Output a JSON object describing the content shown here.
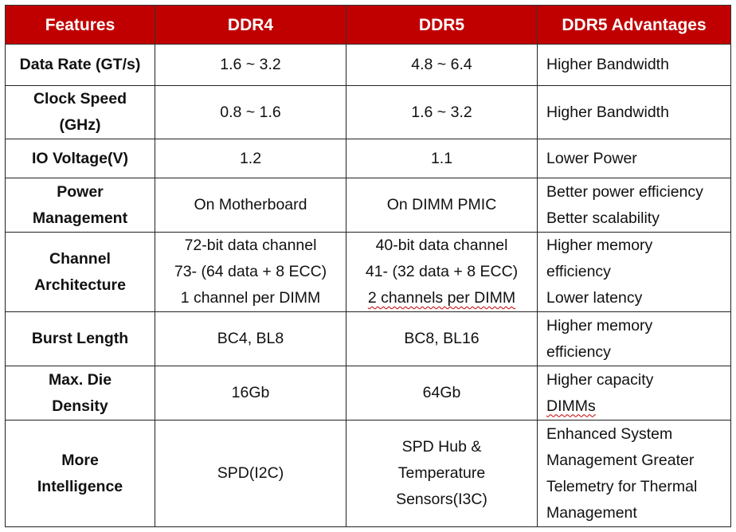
{
  "headers": [
    "Features",
    "DDR4",
    "DDR5",
    "DDR5 Advantages"
  ],
  "rows": [
    {
      "feature": [
        "Data Rate (GT/s)"
      ],
      "ddr4": [
        "1.6 ~ 3.2"
      ],
      "ddr5": [
        "4.8 ~ 6.4"
      ],
      "advantage": [
        "Higher Bandwidth"
      ]
    },
    {
      "feature": [
        "Clock Speed",
        "(GHz)"
      ],
      "ddr4": [
        "0.8 ~ 1.6"
      ],
      "ddr5": [
        "1.6 ~ 3.2"
      ],
      "advantage": [
        "Higher Bandwidth"
      ]
    },
    {
      "feature": [
        "IO Voltage(V)"
      ],
      "ddr4": [
        "1.2"
      ],
      "ddr5": [
        "1.1"
      ],
      "advantage": [
        "Lower Power"
      ]
    },
    {
      "feature": [
        "Power",
        "Management"
      ],
      "ddr4": [
        "On Motherboard"
      ],
      "ddr5": [
        "On DIMM PMIC"
      ],
      "advantage": [
        "Better power efficiency",
        "Better scalability"
      ]
    },
    {
      "feature": [
        "Channel",
        "Architecture"
      ],
      "ddr4": [
        "72-bit data channel",
        "73-  (64 data + 8 ECC)",
        "1 channel per DIMM"
      ],
      "ddr5": [
        "40-bit data channel",
        "41-  (32 data + 8 ECC)",
        "2 channels per DIMM"
      ],
      "advantage": [
        "Higher memory",
        "efficiency",
        "Lower latency"
      ]
    },
    {
      "feature": [
        "Burst Length"
      ],
      "ddr4": [
        "BC4,  BL8"
      ],
      "ddr5": [
        "BC8,  BL16"
      ],
      "advantage": [
        "Higher memory",
        "efficiency"
      ]
    },
    {
      "feature": [
        "Max. Die",
        "Density"
      ],
      "ddr4": [
        "16Gb"
      ],
      "ddr5": [
        "64Gb"
      ],
      "advantage": [
        "Higher capacity",
        "DIMMs"
      ]
    },
    {
      "feature": [
        "More",
        "Intelligence"
      ],
      "ddr4": [
        "SPD(I2C)"
      ],
      "ddr5": [
        "SPD Hub &",
        "Temperature",
        "Sensors(I3C)"
      ],
      "advantage": [
        "Enhanced System",
        "Management Greater",
        "Telemetry for Thermal",
        "Management"
      ]
    }
  ],
  "colors": {
    "header_bg": "#c00000",
    "header_text": "#ffffff",
    "border": "#222222",
    "spellcheck_underline": "#c00000"
  }
}
